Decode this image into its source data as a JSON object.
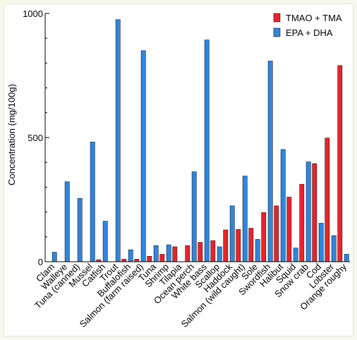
{
  "chart_data": {
    "type": "bar",
    "title": "",
    "xlabel": "",
    "ylabel": "Concentration (mg/100g)",
    "ylim": [
      0,
      1000
    ],
    "yticks": [
      0,
      500,
      1000
    ],
    "grid": false,
    "legend_position": "top-right",
    "categories": [
      "Clam",
      "Walleye",
      "Tuna (canned)",
      "Mussel",
      "Catfish",
      "Trout",
      "Buffalofish",
      "Salmon (farm raised)",
      "Tuna",
      "Shrimp",
      "Tilapia",
      "Ocean perch",
      "White bass",
      "Scallop",
      "Haddock",
      "Salmon (wild caught)",
      "Sole",
      "Swordfish",
      "Halibut",
      "Squid",
      "Snow crab",
      "Cod",
      "Lobster",
      "Orange roughy"
    ],
    "series": [
      {
        "name": "TMAO + TMA",
        "color": "#e8242c",
        "values": [
          0,
          0,
          0,
          0,
          8,
          0,
          10,
          10,
          22,
          30,
          60,
          65,
          78,
          85,
          128,
          130,
          135,
          198,
          225,
          260,
          312,
          395,
          498,
          790
        ]
      },
      {
        "name": "EPA + DHA",
        "color": "#2f86e0",
        "values": [
          38,
          322,
          255,
          482,
          163,
          975,
          48,
          850,
          65,
          68,
          0,
          362,
          893,
          60,
          225,
          345,
          90,
          808,
          452,
          55,
          402,
          155,
          105,
          30
        ]
      }
    ]
  }
}
